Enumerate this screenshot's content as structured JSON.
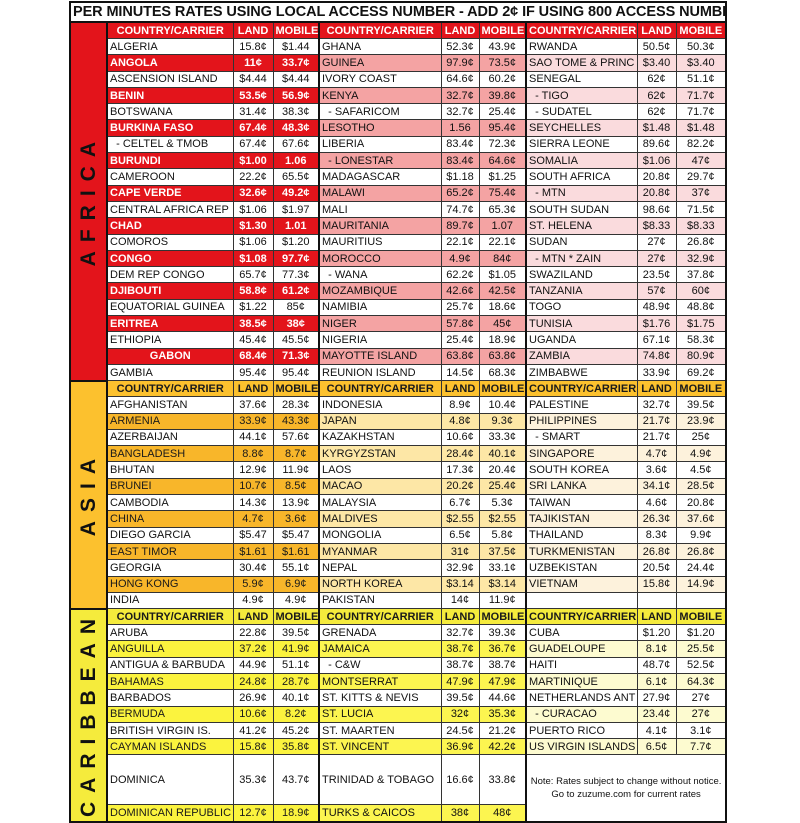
{
  "title": "PER MINUTES RATES USING LOCAL ACCESS NUMBER - ADD 2¢ IF USING 800 ACCESS NUMBER",
  "headers": {
    "country": "COUNTRY/CARRIER",
    "land": "LAND",
    "mobile": "MOBILE"
  },
  "note": {
    "line1": "Note: Rates subject to change without notice.",
    "line2": "Go to zuzume.com for current rates"
  },
  "regions": [
    {
      "name": "AFRICA",
      "colors": {
        "header": "#e3141b",
        "header_text": "#ffffff",
        "label_text": "#111111",
        "hl1": "#e3141b",
        "hl1_text": "#ffffff",
        "hl2": "#f4a3a3",
        "hl3": "#fadbdd"
      },
      "rows": [
        [
          [
            "ALGERIA",
            "15.8¢",
            "$1.44"
          ],
          [
            "GHANA",
            "52.3¢",
            "43.9¢"
          ],
          [
            "RWANDA",
            "50.5¢",
            "50.3¢"
          ]
        ],
        [
          [
            "ANGOLA",
            "11¢",
            "33.7¢"
          ],
          [
            "GUINEA",
            "97.9¢",
            "73.5¢"
          ],
          [
            "SAO TOME & PRINC",
            "$3.40",
            "$3.40"
          ]
        ],
        [
          [
            "ASCENSION ISLAND",
            "$4.44",
            "$4.44"
          ],
          [
            "IVORY COAST",
            "64.6¢",
            "60.2¢"
          ],
          [
            "SENEGAL",
            "62¢",
            "51.1¢"
          ]
        ],
        [
          [
            "BENIN",
            "53.5¢",
            "56.9¢"
          ],
          [
            "KENYA",
            "32.7¢",
            "39.8¢"
          ],
          [
            "  - TIGO",
            "62¢",
            "71.7¢"
          ]
        ],
        [
          [
            "BOTSWANA",
            "31.4¢",
            "38.3¢"
          ],
          [
            "  - SAFARICOM",
            "32.7¢",
            "25.4¢"
          ],
          [
            "  - SUDATEL",
            "62¢",
            "71.7¢"
          ]
        ],
        [
          [
            "BURKINA FASO",
            "67.4¢",
            "48.3¢"
          ],
          [
            "LESOTHO",
            "1.56",
            "95.4¢"
          ],
          [
            "SEYCHELLES",
            "$1.48",
            "$1.48"
          ]
        ],
        [
          [
            "  - CELTEL & TMOB",
            "67.4¢",
            "67.6¢"
          ],
          [
            "LIBERIA",
            "83.4¢",
            "72.3¢"
          ],
          [
            "SIERRA LEONE",
            "89.6¢",
            "82.2¢"
          ]
        ],
        [
          [
            "BURUNDI",
            "$1.00",
            "1.06"
          ],
          [
            "  - LONESTAR",
            "83.4¢",
            "64.6¢"
          ],
          [
            "SOMALIA",
            "$1.06",
            "47¢"
          ]
        ],
        [
          [
            "CAMEROON",
            "22.2¢",
            "65.5¢"
          ],
          [
            "MADAGASCAR",
            "$1.18",
            "$1.25"
          ],
          [
            "SOUTH AFRICA",
            "20.8¢",
            "29.7¢"
          ]
        ],
        [
          [
            "CAPE VERDE",
            "32.6¢",
            "49.2¢"
          ],
          [
            "MALAWI",
            "65.2¢",
            "75.4¢"
          ],
          [
            "  - MTN",
            "20.8¢",
            "37¢"
          ]
        ],
        [
          [
            "CENTRAL AFRICA REP",
            "$1.06",
            "$1.97"
          ],
          [
            "MALI",
            "74.7¢",
            "65.3¢"
          ],
          [
            "SOUTH SUDAN",
            "98.6¢",
            "71.5¢"
          ]
        ],
        [
          [
            "CHAD",
            "$1.30",
            "1.01"
          ],
          [
            "MAURITANIA",
            "89.7¢",
            "1.07"
          ],
          [
            "ST. HELENA",
            "$8.33",
            "$8.33"
          ]
        ],
        [
          [
            "COMOROS",
            "$1.06",
            "$1.20"
          ],
          [
            "MAURITIUS",
            "22.1¢",
            "22.1¢"
          ],
          [
            "SUDAN",
            "27¢",
            "26.8¢"
          ]
        ],
        [
          [
            "CONGO",
            "$1.08",
            "97.7¢"
          ],
          [
            "MOROCCO",
            "4.9¢",
            "84¢"
          ],
          [
            "  - MTN * ZAIN",
            "27¢",
            "32.9¢"
          ]
        ],
        [
          [
            "DEM REP CONGO",
            "65.7¢",
            "77.3¢"
          ],
          [
            "  - WANA",
            "62.2¢",
            "$1.05"
          ],
          [
            "SWAZILAND",
            "23.5¢",
            "37.8¢"
          ]
        ],
        [
          [
            "DJIBOUTI",
            "58.8¢",
            "61.2¢"
          ],
          [
            "MOZAMBIQUE",
            "42.6¢",
            "42.5¢"
          ],
          [
            "TANZANIA",
            "57¢",
            "60¢"
          ]
        ],
        [
          [
            "EQUATORIAL GUINEA",
            "$1.22",
            "85¢"
          ],
          [
            "NAMIBIA",
            "25.7¢",
            "18.6¢"
          ],
          [
            "TOGO",
            "48.9¢",
            "48.8¢"
          ]
        ],
        [
          [
            "ERITREA",
            "38.5¢",
            "38¢"
          ],
          [
            "NIGER",
            "57.8¢",
            "45¢"
          ],
          [
            "TUNISIA",
            "$1.76",
            "$1.75"
          ]
        ],
        [
          [
            "ETHIOPIA",
            "45.4¢",
            "45.5¢"
          ],
          [
            "NIGERIA",
            "25.4¢",
            "18.9¢"
          ],
          [
            "UGANDA",
            "67.1¢",
            "58.3¢"
          ]
        ],
        [
          [
            "GABON",
            "68.4¢",
            "71.3¢"
          ],
          [
            "MAYOTTE ISLAND",
            "63.8¢",
            "63.8¢"
          ],
          [
            "ZAMBIA",
            "74.8¢",
            "80.9¢"
          ]
        ],
        [
          [
            "GAMBIA",
            "95.4¢",
            "95.4¢"
          ],
          [
            "REUNION ISLAND",
            "14.5¢",
            "68.3¢"
          ],
          [
            "ZIMBABWE",
            "33.9¢",
            "69.2¢"
          ]
        ]
      ]
    },
    {
      "name": "ASIA",
      "colors": {
        "header": "#fcc12e",
        "header_text": "#1a1a1a",
        "label_text": "#111111",
        "hl1": "#f8b62a",
        "hl1_text": "#1a1a1a",
        "hl2": "#fde7a6",
        "hl3": "#fdf2dc"
      },
      "rows": [
        [
          [
            "AFGHANISTAN",
            "37.6¢",
            "28.3¢"
          ],
          [
            "INDONESIA",
            "8.9¢",
            "10.4¢"
          ],
          [
            "PALESTINE",
            "32.7¢",
            "39.5¢"
          ]
        ],
        [
          [
            "ARMENIA",
            "33.9¢",
            "43.3¢"
          ],
          [
            "JAPAN",
            "4.8¢",
            "9.3¢"
          ],
          [
            "PHILIPPINES",
            "21.7¢",
            "23.9¢"
          ]
        ],
        [
          [
            "AZERBAIJAN",
            "44.1¢",
            "57.6¢"
          ],
          [
            "KAZAKHSTAN",
            "10.6¢",
            "33.3¢"
          ],
          [
            "  - SMART",
            "21.7¢",
            "25¢"
          ]
        ],
        [
          [
            "BANGLADESH",
            "8.8¢",
            "8.7¢"
          ],
          [
            "KYRGYZSTAN",
            "28.4¢",
            "40.1¢"
          ],
          [
            "SINGAPORE",
            "4.7¢",
            "4.9¢"
          ]
        ],
        [
          [
            "BHUTAN",
            "12.9¢",
            "11.9¢"
          ],
          [
            "LAOS",
            "17.3¢",
            "20.4¢"
          ],
          [
            "SOUTH KOREA",
            "3.6¢",
            "4.5¢"
          ]
        ],
        [
          [
            "BRUNEI",
            "10.7¢",
            "8.5¢"
          ],
          [
            "MACAO",
            "20.2¢",
            "25.4¢"
          ],
          [
            "SRI LANKA",
            "34.1¢",
            "28.5¢"
          ]
        ],
        [
          [
            "CAMBODIA",
            "14.3¢",
            "13.9¢"
          ],
          [
            "MALAYSIA",
            "6.7¢",
            "5.3¢"
          ],
          [
            "TAIWAN",
            "4.6¢",
            "20.8¢"
          ]
        ],
        [
          [
            "CHINA",
            "4.7¢",
            "3.6¢"
          ],
          [
            "MALDIVES",
            "$2.55",
            "$2.55"
          ],
          [
            "TAJIKISTAN",
            "26.3¢",
            "37.6¢"
          ]
        ],
        [
          [
            "DIEGO GARCIA",
            "$5.47",
            "$5.47"
          ],
          [
            "MONGOLIA",
            "6.5¢",
            "5.8¢"
          ],
          [
            "THAILAND",
            "8.3¢",
            "9.9¢"
          ]
        ],
        [
          [
            "EAST TIMOR",
            "$1.61",
            "$1.61"
          ],
          [
            "MYANMAR",
            "31¢",
            "37.5¢"
          ],
          [
            "TURKMENISTAN",
            "26.8¢",
            "26.8¢"
          ]
        ],
        [
          [
            "GEORGIA",
            "30.4¢",
            "55.1¢"
          ],
          [
            "NEPAL",
            "32.9¢",
            "33.1¢"
          ],
          [
            "UZBEKISTAN",
            "20.5¢",
            "24.4¢"
          ]
        ],
        [
          [
            "HONG KONG",
            "5.9¢",
            "6.9¢"
          ],
          [
            "NORTH KOREA",
            "$3.14",
            "$3.14"
          ],
          [
            "VIETNAM",
            "15.8¢",
            "14.9¢"
          ]
        ],
        [
          [
            "INDIA",
            "4.9¢",
            "4.9¢"
          ],
          [
            "PAKISTAN",
            "14¢",
            "11.9¢"
          ],
          null
        ]
      ]
    },
    {
      "name": "CARIBBEAN",
      "colors": {
        "header": "#f5eb3c",
        "header_text": "#1a1a1a",
        "label_text": "#111111",
        "hl1": "#fbf33e",
        "hl1_text": "#1a1a1a",
        "hl2": "#fcf550",
        "hl3": "#fdfbd0"
      },
      "rows": [
        [
          [
            "ARUBA",
            "22.8¢",
            "39.5¢"
          ],
          [
            "GRENADA",
            "32.7¢",
            "39.3¢"
          ],
          [
            "CUBA",
            "$1.20",
            "$1.20"
          ]
        ],
        [
          [
            "ANGUILLA",
            "37.2¢",
            "41.9¢"
          ],
          [
            "JAMAICA",
            "38.7¢",
            "36.7¢"
          ],
          [
            "GUADELOUPE",
            "8.1¢",
            "25.5¢"
          ]
        ],
        [
          [
            "ANTIGUA & BARBUDA",
            "44.9¢",
            "51.1¢"
          ],
          [
            "  - C&W",
            "38.7¢",
            "38.7¢"
          ],
          [
            "HAITI",
            "48.7¢",
            "52.5¢"
          ]
        ],
        [
          [
            "BAHAMAS",
            "24.8¢",
            "28.7¢"
          ],
          [
            "MONTSERRAT",
            "47.9¢",
            "47.9¢"
          ],
          [
            "MARTINIQUE",
            "6.1¢",
            "64.3¢"
          ]
        ],
        [
          [
            "BARBADOS",
            "26.9¢",
            "40.1¢"
          ],
          [
            "ST. KITTS & NEVIS",
            "39.5¢",
            "44.6¢"
          ],
          [
            "NETHERLANDS ANT",
            "27.9¢",
            "27¢"
          ]
        ],
        [
          [
            "BERMUDA",
            "10.6¢",
            "8.2¢"
          ],
          [
            "ST. LUCIA",
            "32¢",
            "35.3¢"
          ],
          [
            "  - CURACAO",
            "23.4¢",
            "27¢"
          ]
        ],
        [
          [
            "BRITISH VIRGIN IS.",
            "41.2¢",
            "45.2¢"
          ],
          [
            "ST. MAARTEN",
            "24.5¢",
            "21.2¢"
          ],
          [
            "PUERTO RICO",
            "4.1¢",
            "3.1¢"
          ]
        ],
        [
          [
            "CAYMAN ISLANDS",
            "15.8¢",
            "35.8¢"
          ],
          [
            "ST. VINCENT",
            "36.9¢",
            "42.2¢"
          ],
          [
            "US VIRGIN ISLANDS",
            "6.5¢",
            "7.7¢"
          ]
        ],
        [
          [
            "DOMINICA",
            "35.3¢",
            "43.7¢"
          ],
          [
            "TRINIDAD & TOBAGO",
            "16.6¢",
            "33.8¢"
          ],
          "note"
        ],
        [
          [
            "DOMINICAN REPUBLIC",
            "12.7¢",
            "18.9¢"
          ],
          [
            "TURKS & CAICOS",
            "38¢",
            "48¢"
          ],
          "skip"
        ]
      ]
    }
  ]
}
